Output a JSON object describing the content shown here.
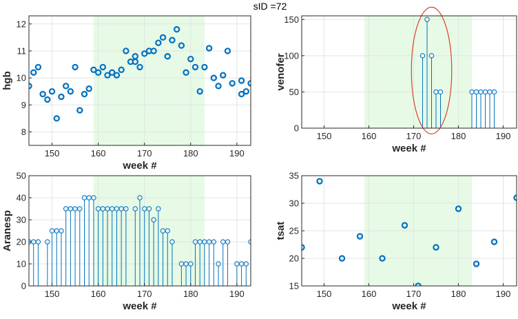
{
  "figure_title": "sID =72",
  "colors": {
    "marker": "#0072BD",
    "marker_fill": "#E6F1F8",
    "shade": "#E6FAE6",
    "grid": "#E3E3E3",
    "axis": "#262626",
    "ellipse": "#D9412B"
  },
  "chart_data": [
    {
      "id": "hgb",
      "type": "scatter",
      "title": "",
      "xlabel": "week #",
      "ylabel": "hgb",
      "xlim": [
        145,
        193
      ],
      "ylim": [
        7.5,
        12.3
      ],
      "xticks": [
        150,
        160,
        170,
        180,
        190
      ],
      "yticks": [
        8,
        9,
        10,
        11,
        12
      ],
      "shade": [
        159,
        183
      ],
      "x": [
        145,
        146,
        147,
        148,
        149,
        150,
        151,
        152,
        153,
        154,
        155,
        156,
        157,
        158,
        159,
        160,
        161,
        162,
        163,
        164,
        165,
        166,
        167,
        168,
        168,
        169,
        170,
        171,
        172,
        173,
        174,
        175,
        176,
        177,
        178,
        179,
        180,
        181,
        182,
        183,
        184,
        185,
        186,
        187,
        188,
        189,
        191,
        191,
        192,
        193
      ],
      "y": [
        9.7,
        10.2,
        10.4,
        9.4,
        9.2,
        9.5,
        8.5,
        9.3,
        9.7,
        9.5,
        10.4,
        8.8,
        9.4,
        9.6,
        10.3,
        10.2,
        10.4,
        10.1,
        10.2,
        10.1,
        10.3,
        11.0,
        10.6,
        10.8,
        10.6,
        10.4,
        10.9,
        11.0,
        11.0,
        11.3,
        11.5,
        10.8,
        11.4,
        11.8,
        11.2,
        10.2,
        10.7,
        10.4,
        9.5,
        10.4,
        11.1,
        10.0,
        9.7,
        10.1,
        11.0,
        9.8,
        9.9,
        9.4,
        9.5,
        9.8
      ]
    },
    {
      "id": "venofer",
      "type": "stem",
      "title": "",
      "xlabel": "week #",
      "ylabel": "venofer",
      "xlim": [
        145,
        193
      ],
      "ylim": [
        0,
        155
      ],
      "xticks": [
        150,
        160,
        170,
        180,
        190
      ],
      "yticks": [
        0,
        50,
        100,
        150
      ],
      "shade": [
        159,
        183
      ],
      "x": [
        172,
        173,
        174,
        175,
        176,
        183,
        184,
        185,
        186,
        187,
        188
      ],
      "y": [
        100,
        150,
        100,
        50,
        50,
        50,
        50,
        50,
        50,
        50,
        50
      ],
      "annotation": {
        "shape": "ellipse",
        "x_range": [
          169.5,
          178.5
        ],
        "y_range": [
          -8,
          167
        ]
      }
    },
    {
      "id": "aranesp",
      "type": "stem",
      "title": "",
      "xlabel": "week #",
      "ylabel": "Aranesp",
      "xlim": [
        145,
        193
      ],
      "ylim": [
        0,
        50
      ],
      "xticks": [
        150,
        160,
        170,
        180,
        190
      ],
      "yticks": [
        0,
        10,
        20,
        30,
        40,
        50
      ],
      "shade": [
        159,
        183
      ],
      "x": [
        145,
        146,
        147,
        149,
        150,
        151,
        152,
        153,
        154,
        155,
        156,
        157,
        158,
        159,
        160,
        161,
        162,
        163,
        164,
        165,
        166,
        168,
        169,
        170,
        171,
        172,
        173,
        174,
        175,
        176,
        178,
        179,
        180,
        181,
        182,
        183,
        184,
        185,
        186,
        187,
        188,
        190,
        191,
        192,
        193
      ],
      "y": [
        20,
        20,
        20,
        20,
        25,
        25,
        25,
        35,
        35,
        35,
        35,
        40,
        40,
        40,
        35,
        35,
        35,
        35,
        35,
        35,
        35,
        35,
        40,
        35,
        35,
        30,
        35,
        25,
        25,
        20,
        10,
        10,
        10,
        20,
        20,
        20,
        20,
        20,
        10,
        20,
        20,
        10,
        10,
        10,
        20
      ]
    },
    {
      "id": "tsat",
      "type": "scatter",
      "title": "",
      "xlabel": "week #",
      "ylabel": "tsat",
      "xlim": [
        145,
        193
      ],
      "ylim": [
        15,
        35
      ],
      "xticks": [
        150,
        160,
        170,
        180,
        190
      ],
      "yticks": [
        15,
        20,
        25,
        30,
        35
      ],
      "shade": [
        159,
        183
      ],
      "x": [
        145,
        149,
        154,
        158,
        163,
        168,
        171,
        175,
        180,
        184,
        188,
        193
      ],
      "y": [
        22,
        34,
        20,
        24,
        20,
        26,
        15,
        22,
        29,
        19,
        23,
        31
      ]
    }
  ]
}
